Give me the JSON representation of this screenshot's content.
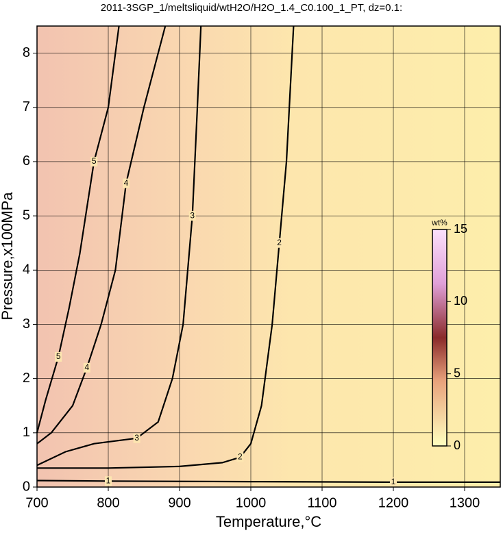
{
  "chart_data": {
    "type": "contour",
    "title": "2011-3SGP_1/meltsliquid/wtH2O/H2O_1.4_C0.100_1_PT, dz=0.1:",
    "x_label": "Temperature,°C",
    "y_label": "Pressure,x100MPa",
    "xlim": [
      700,
      1350
    ],
    "ylim": [
      0,
      8.5
    ],
    "xticks": [
      700,
      800,
      900,
      1000,
      1100,
      1200,
      1300
    ],
    "yticks": [
      0,
      1,
      2,
      3,
      4,
      5,
      6,
      7,
      8
    ],
    "grid": true,
    "series": [
      {
        "name": "1",
        "color": "#000000",
        "x": [
          700,
          800,
          1000,
          1200,
          1350
        ],
        "y": [
          0.12,
          0.11,
          0.1,
          0.09,
          0.09
        ]
      },
      {
        "name": "2",
        "color": "#000000",
        "x": [
          700,
          800,
          900,
          960,
          985,
          1000,
          1015,
          1030,
          1040,
          1050,
          1060
        ],
        "y": [
          0.35,
          0.35,
          0.38,
          0.45,
          0.55,
          0.8,
          1.5,
          3,
          4.5,
          6,
          8.5
        ]
      },
      {
        "name": "3",
        "color": "#000000",
        "x": [
          700,
          740,
          780,
          840,
          870,
          890,
          905,
          918,
          925,
          930
        ],
        "y": [
          0.4,
          0.65,
          0.8,
          0.9,
          1.2,
          2,
          3,
          5,
          7,
          8.5
        ]
      },
      {
        "name": "4",
        "color": "#000000",
        "x": [
          700,
          720,
          750,
          770,
          790,
          810,
          825,
          850,
          880
        ],
        "y": [
          0.8,
          1,
          1.5,
          2.2,
          3,
          4,
          5.6,
          7,
          8.5
        ]
      },
      {
        "name": "5",
        "color": "#000000",
        "x": [
          700,
          712,
          730,
          745,
          760,
          780,
          800,
          815
        ],
        "y": [
          1,
          1.6,
          2.4,
          3.3,
          4.3,
          6,
          7,
          8.5
        ]
      }
    ],
    "colorbar": {
      "label": "wt%",
      "lim": [
        0,
        15
      ],
      "ticks": [
        0,
        5,
        10,
        15
      ]
    }
  }
}
